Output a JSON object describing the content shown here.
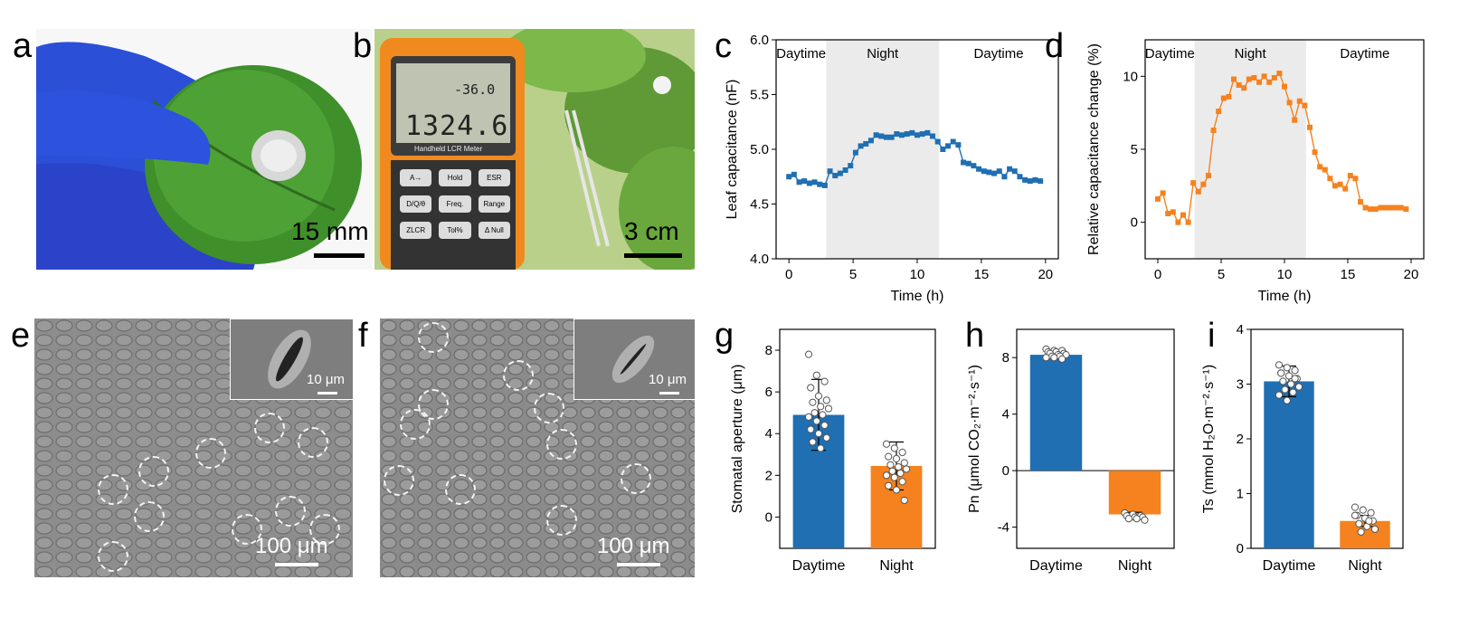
{
  "panels": {
    "a": {
      "label": "a",
      "scale": "15 mm"
    },
    "b": {
      "label": "b",
      "scale": "3 cm",
      "meter": {
        "brand": "Handheld LCR Meter",
        "reading_top": "-36.0",
        "reading_main": "1324.6",
        "keys": [
          "A→",
          "Hold",
          "ESR",
          "D/Q/θ",
          "Freq.",
          "Range",
          "ZLCR",
          "Tol%",
          "Δ Null"
        ]
      }
    },
    "c": {
      "label": "c"
    },
    "d": {
      "label": "d"
    },
    "e": {
      "label": "e",
      "scale": "100 μm",
      "inset_scale": "10 μm"
    },
    "f": {
      "label": "f",
      "scale": "100 μm",
      "inset_scale": "10 μm"
    },
    "g": {
      "label": "g"
    },
    "h": {
      "label": "h"
    },
    "i": {
      "label": "i"
    }
  },
  "chart_data": [
    {
      "id": "c",
      "type": "line",
      "color": "#1f6fb2",
      "xlabel": "Time (h)",
      "ylabel": "Leaf capacitance (nF)",
      "xlim": [
        -1,
        21
      ],
      "ylim": [
        4.0,
        6.0
      ],
      "xticks": [
        0,
        5,
        10,
        15,
        20
      ],
      "yticks": [
        4.0,
        4.5,
        5.0,
        5.5,
        6.0
      ],
      "regions": [
        {
          "label": "Daytime",
          "from": -1,
          "to": 2.9,
          "shaded": false
        },
        {
          "label": "Night",
          "from": 2.9,
          "to": 11.7,
          "shaded": true
        },
        {
          "label": "Daytime",
          "from": 11.7,
          "to": 21,
          "shaded": false
        }
      ],
      "x": [
        0,
        0.4,
        0.8,
        1.2,
        1.6,
        2.0,
        2.4,
        2.8,
        3.2,
        3.6,
        4.0,
        4.4,
        4.8,
        5.2,
        5.6,
        6.0,
        6.4,
        6.8,
        7.2,
        7.6,
        8.0,
        8.4,
        8.8,
        9.2,
        9.6,
        10.0,
        10.4,
        10.8,
        11.2,
        11.6,
        12.0,
        12.4,
        12.8,
        13.2,
        13.6,
        14.0,
        14.4,
        14.8,
        15.2,
        15.6,
        16.0,
        16.4,
        16.8,
        17.2,
        17.6,
        18.0,
        18.4,
        18.8,
        19.2,
        19.6
      ],
      "y": [
        4.75,
        4.77,
        4.7,
        4.71,
        4.69,
        4.7,
        4.68,
        4.67,
        4.8,
        4.76,
        4.78,
        4.81,
        4.85,
        4.97,
        5.03,
        5.05,
        5.08,
        5.13,
        5.12,
        5.11,
        5.11,
        5.14,
        5.13,
        5.14,
        5.15,
        5.13,
        5.14,
        5.15,
        5.12,
        5.07,
        5.0,
        5.03,
        5.07,
        5.04,
        4.88,
        4.87,
        4.85,
        4.82,
        4.8,
        4.79,
        4.78,
        4.8,
        4.75,
        4.82,
        4.8,
        4.75,
        4.72,
        4.71,
        4.72,
        4.71
      ]
    },
    {
      "id": "d",
      "type": "line",
      "color": "#f5821f",
      "xlabel": "Time (h)",
      "ylabel": "Relative capacitance change (%)",
      "xlim": [
        -1,
        21
      ],
      "ylim": [
        -2.5,
        12.5
      ],
      "xticks": [
        0,
        5,
        10,
        15,
        20
      ],
      "yticks": [
        0,
        5,
        10
      ],
      "regions": [
        {
          "label": "Daytime",
          "from": -1,
          "to": 2.9,
          "shaded": false
        },
        {
          "label": "Night",
          "from": 2.9,
          "to": 11.7,
          "shaded": true
        },
        {
          "label": "Daytime",
          "from": 11.7,
          "to": 21,
          "shaded": false
        }
      ],
      "x": [
        0,
        0.4,
        0.8,
        1.2,
        1.6,
        2.0,
        2.4,
        2.8,
        3.2,
        3.6,
        4.0,
        4.4,
        4.8,
        5.2,
        5.6,
        6.0,
        6.4,
        6.8,
        7.2,
        7.6,
        8.0,
        8.4,
        8.8,
        9.2,
        9.6,
        10.0,
        10.4,
        10.8,
        11.2,
        11.6,
        12.0,
        12.4,
        12.8,
        13.2,
        13.6,
        14.0,
        14.4,
        14.8,
        15.2,
        15.6,
        16.0,
        16.4,
        16.8,
        17.2,
        17.6,
        18.0,
        18.4,
        18.8,
        19.2,
        19.6
      ],
      "y": [
        1.6,
        2.0,
        0.6,
        0.7,
        0.0,
        0.5,
        0.0,
        2.7,
        2.1,
        2.6,
        3.2,
        6.3,
        7.6,
        8.5,
        8.6,
        9.8,
        9.4,
        9.2,
        9.8,
        9.9,
        9.6,
        10.0,
        9.6,
        9.9,
        10.2,
        9.3,
        8.2,
        7.0,
        8.3,
        8.0,
        6.5,
        4.8,
        3.8,
        3.6,
        3.0,
        2.5,
        2.6,
        2.3,
        3.2,
        3.0,
        1.4,
        1.0,
        0.9,
        0.9,
        1.0,
        1.0,
        1.0,
        1.0,
        1.0,
        0.9
      ]
    },
    {
      "id": "g",
      "type": "bar",
      "categories": [
        "Daytime",
        "Night"
      ],
      "colors": [
        "#1f6fb2",
        "#f5821f"
      ],
      "values": [
        4.9,
        2.45
      ],
      "errors": [
        1.7,
        1.15
      ],
      "ylabel": "Stomatal aperture (μm)",
      "ylim": [
        -1.5,
        9
      ],
      "yticks": [
        0,
        2,
        4,
        6,
        8
      ],
      "points": [
        [
          7.8,
          6.8,
          6.5,
          6.2,
          5.8,
          5.6,
          5.5,
          5.3,
          5.2,
          5.0,
          4.9,
          4.8,
          4.6,
          4.4,
          4.2,
          4.0,
          3.8,
          3.6,
          3.3
        ],
        [
          3.5,
          3.3,
          3.1,
          2.9,
          2.8,
          2.6,
          2.5,
          2.4,
          2.3,
          2.2,
          2.1,
          2.0,
          1.9,
          1.7,
          1.5,
          1.3,
          0.8
        ]
      ]
    },
    {
      "id": "h",
      "type": "bar",
      "categories": [
        "Daytime",
        "Night"
      ],
      "colors": [
        "#1f6fb2",
        "#f5821f"
      ],
      "values": [
        8.2,
        -3.1
      ],
      "errors": [
        0.2,
        0.15
      ],
      "ylabel": "Pn (μmol CO₂·m⁻²·s⁻¹)",
      "ylim": [
        -5.5,
        10
      ],
      "yticks": [
        -4,
        0,
        4,
        8
      ],
      "points": [
        [
          8.6,
          8.5,
          8.5,
          8.4,
          8.4,
          8.3,
          8.3,
          8.2,
          8.2,
          8.1,
          8.1,
          8.0,
          8.0,
          7.9
        ],
        [
          -3.0,
          -3.1,
          -3.2,
          -3.2,
          -3.3,
          -3.3,
          -3.4,
          -3.4,
          -3.5
        ]
      ]
    },
    {
      "id": "i",
      "type": "bar",
      "categories": [
        "Daytime",
        "Night"
      ],
      "colors": [
        "#1f6fb2",
        "#f5821f"
      ],
      "values": [
        3.05,
        0.5
      ],
      "errors": [
        0.28,
        0.1
      ],
      "ylabel": "Ts (mmol H₂O·m⁻²·s⁻¹)",
      "ylim": [
        0,
        4
      ],
      "yticks": [
        0,
        1,
        2,
        3,
        4
      ],
      "points": [
        [
          3.35,
          3.3,
          3.25,
          3.2,
          3.15,
          3.1,
          3.05,
          3.0,
          2.95,
          2.9,
          2.85,
          2.8,
          2.7,
          3.1,
          3.2
        ],
        [
          0.75,
          0.7,
          0.65,
          0.6,
          0.55,
          0.5,
          0.45,
          0.4,
          0.35,
          0.3,
          0.5,
          0.6
        ]
      ]
    }
  ]
}
